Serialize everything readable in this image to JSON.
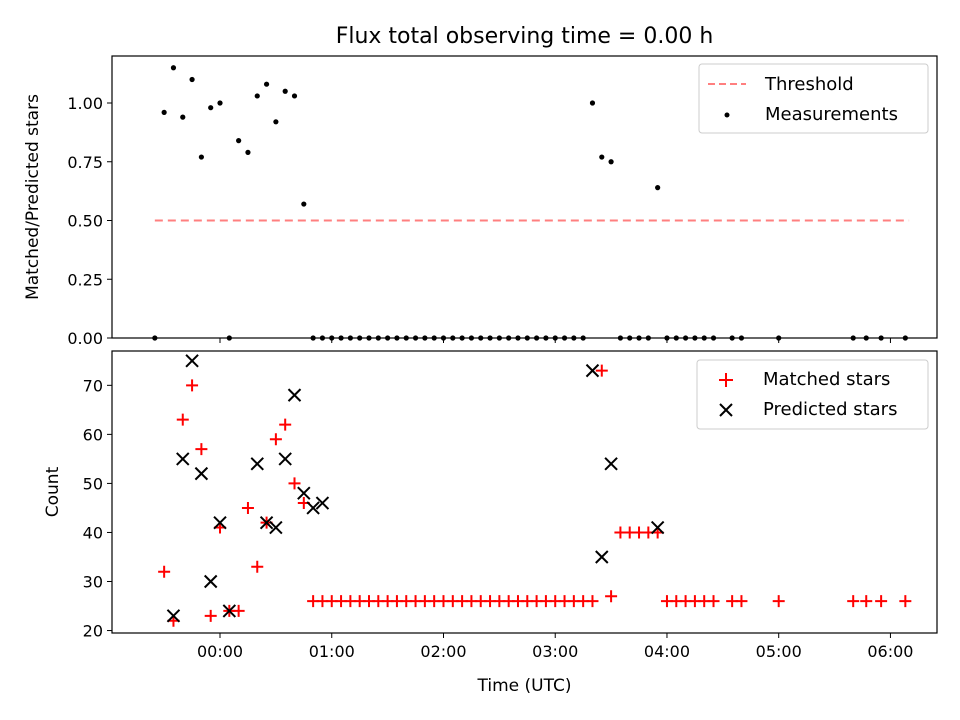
{
  "chart_data": [
    {
      "type": "scatter",
      "title": "Flux total observing time = 0.00 h",
      "xlabel": "",
      "ylabel": "Matched/Predicted stars",
      "ylim": [
        0,
        1.2
      ],
      "yticks": [
        "0.00",
        "0.25",
        "0.50",
        "0.75",
        "1.00"
      ],
      "legend": "top-right",
      "grid": false,
      "threshold": {
        "name": "Threshold",
        "value": 0.5,
        "x": [
          "23:25",
          "06:10"
        ],
        "color": "#ff7f7f"
      },
      "series": [
        {
          "name": "Measurements",
          "color": "#000000",
          "x": [
            "23:25",
            "23:30",
            "23:35",
            "23:40",
            "23:45",
            "23:50",
            "23:55",
            "00:00",
            "00:05",
            "00:10",
            "00:15",
            "00:20",
            "00:25",
            "00:30",
            "00:35",
            "00:40",
            "00:45",
            "00:50",
            "00:55",
            "01:00",
            "01:05",
            "01:10",
            "01:15",
            "01:20",
            "01:25",
            "01:30",
            "01:35",
            "01:40",
            "01:45",
            "01:50",
            "01:55",
            "02:00",
            "02:05",
            "02:10",
            "02:15",
            "02:20",
            "02:25",
            "02:30",
            "02:35",
            "02:40",
            "02:45",
            "02:50",
            "02:55",
            "03:00",
            "03:05",
            "03:10",
            "03:15",
            "03:20",
            "03:25",
            "03:30",
            "03:35",
            "03:40",
            "03:45",
            "03:50",
            "03:55",
            "04:00",
            "04:05",
            "04:10",
            "04:15",
            "04:20",
            "04:25",
            "04:35",
            "04:40",
            "05:00",
            "05:40",
            "05:47",
            "05:55",
            "06:08"
          ],
          "y": [
            0.0,
            0.96,
            1.15,
            0.94,
            1.1,
            0.77,
            0.98,
            1.0,
            0.0,
            0.84,
            0.79,
            1.03,
            1.08,
            0.92,
            1.05,
            1.03,
            0.57,
            0.0,
            0.0,
            0.0,
            0.0,
            0.0,
            0.0,
            0.0,
            0.0,
            0.0,
            0.0,
            0.0,
            0.0,
            0.0,
            0.0,
            0.0,
            0.0,
            0.0,
            0.0,
            0.0,
            0.0,
            0.0,
            0.0,
            0.0,
            0.0,
            0.0,
            0.0,
            0.0,
            0.0,
            0.0,
            0.0,
            1.0,
            0.77,
            0.75,
            0.0,
            0.0,
            0.0,
            0.0,
            0.64,
            0.0,
            0.0,
            0.0,
            0.0,
            0.0,
            0.0,
            0.0,
            0.0,
            0.0,
            0.0,
            0.0,
            0.0,
            0.0
          ]
        }
      ]
    },
    {
      "type": "scatter",
      "title": "",
      "xlabel": "Time (UTC)",
      "ylabel": "Count",
      "ylim": [
        19.5,
        77
      ],
      "yticks": [
        "20",
        "30",
        "40",
        "50",
        "60",
        "70"
      ],
      "xticks": [
        "00:00",
        "01:00",
        "02:00",
        "03:00",
        "04:00",
        "05:00",
        "06:00"
      ],
      "xlim_minutes": [
        -58,
        385
      ],
      "legend": "top-right",
      "grid": false,
      "series": [
        {
          "name": "Matched stars",
          "marker": "+",
          "color": "#ff0000",
          "x": [
            "23:30",
            "23:35",
            "23:40",
            "23:45",
            "23:50",
            "23:55",
            "00:00",
            "00:05",
            "00:10",
            "00:15",
            "00:20",
            "00:25",
            "00:30",
            "00:35",
            "00:40",
            "00:45",
            "00:50",
            "00:55",
            "01:00",
            "01:05",
            "01:10",
            "01:15",
            "01:20",
            "01:25",
            "01:30",
            "01:35",
            "01:40",
            "01:45",
            "01:50",
            "01:55",
            "02:00",
            "02:05",
            "02:10",
            "02:15",
            "02:20",
            "02:25",
            "02:30",
            "02:35",
            "02:40",
            "02:45",
            "02:50",
            "02:55",
            "03:00",
            "03:05",
            "03:10",
            "03:15",
            "03:20",
            "03:25",
            "03:30",
            "03:35",
            "03:40",
            "03:45",
            "03:50",
            "03:55",
            "04:00",
            "04:05",
            "04:10",
            "04:15",
            "04:20",
            "04:25",
            "04:35",
            "04:40",
            "05:00",
            "05:40",
            "05:47",
            "05:55",
            "06:08"
          ],
          "y": [
            32,
            22,
            63,
            70,
            57,
            23,
            41,
            24,
            24,
            45,
            33,
            42,
            59,
            62,
            50,
            46,
            26,
            26,
            26,
            26,
            26,
            26,
            26,
            26,
            26,
            26,
            26,
            26,
            26,
            26,
            26,
            26,
            26,
            26,
            26,
            26,
            26,
            26,
            26,
            26,
            26,
            26,
            26,
            26,
            26,
            26,
            26,
            73,
            27,
            40,
            40,
            40,
            40,
            40,
            26,
            26,
            26,
            26,
            26,
            26,
            26,
            26,
            26,
            26,
            26,
            26,
            26
          ]
        },
        {
          "name": "Predicted stars",
          "marker": "x",
          "color": "#000000",
          "x": [
            "23:35",
            "23:40",
            "23:45",
            "23:50",
            "23:55",
            "00:00",
            "00:05",
            "00:20",
            "00:25",
            "00:30",
            "00:35",
            "00:40",
            "00:45",
            "00:50",
            "00:55",
            "03:20",
            "03:25",
            "03:30",
            "03:55"
          ],
          "y": [
            23,
            55,
            75,
            52,
            30,
            42,
            24,
            54,
            42,
            41,
            55,
            68,
            48,
            45,
            46,
            73,
            35,
            54,
            41
          ]
        }
      ]
    }
  ]
}
